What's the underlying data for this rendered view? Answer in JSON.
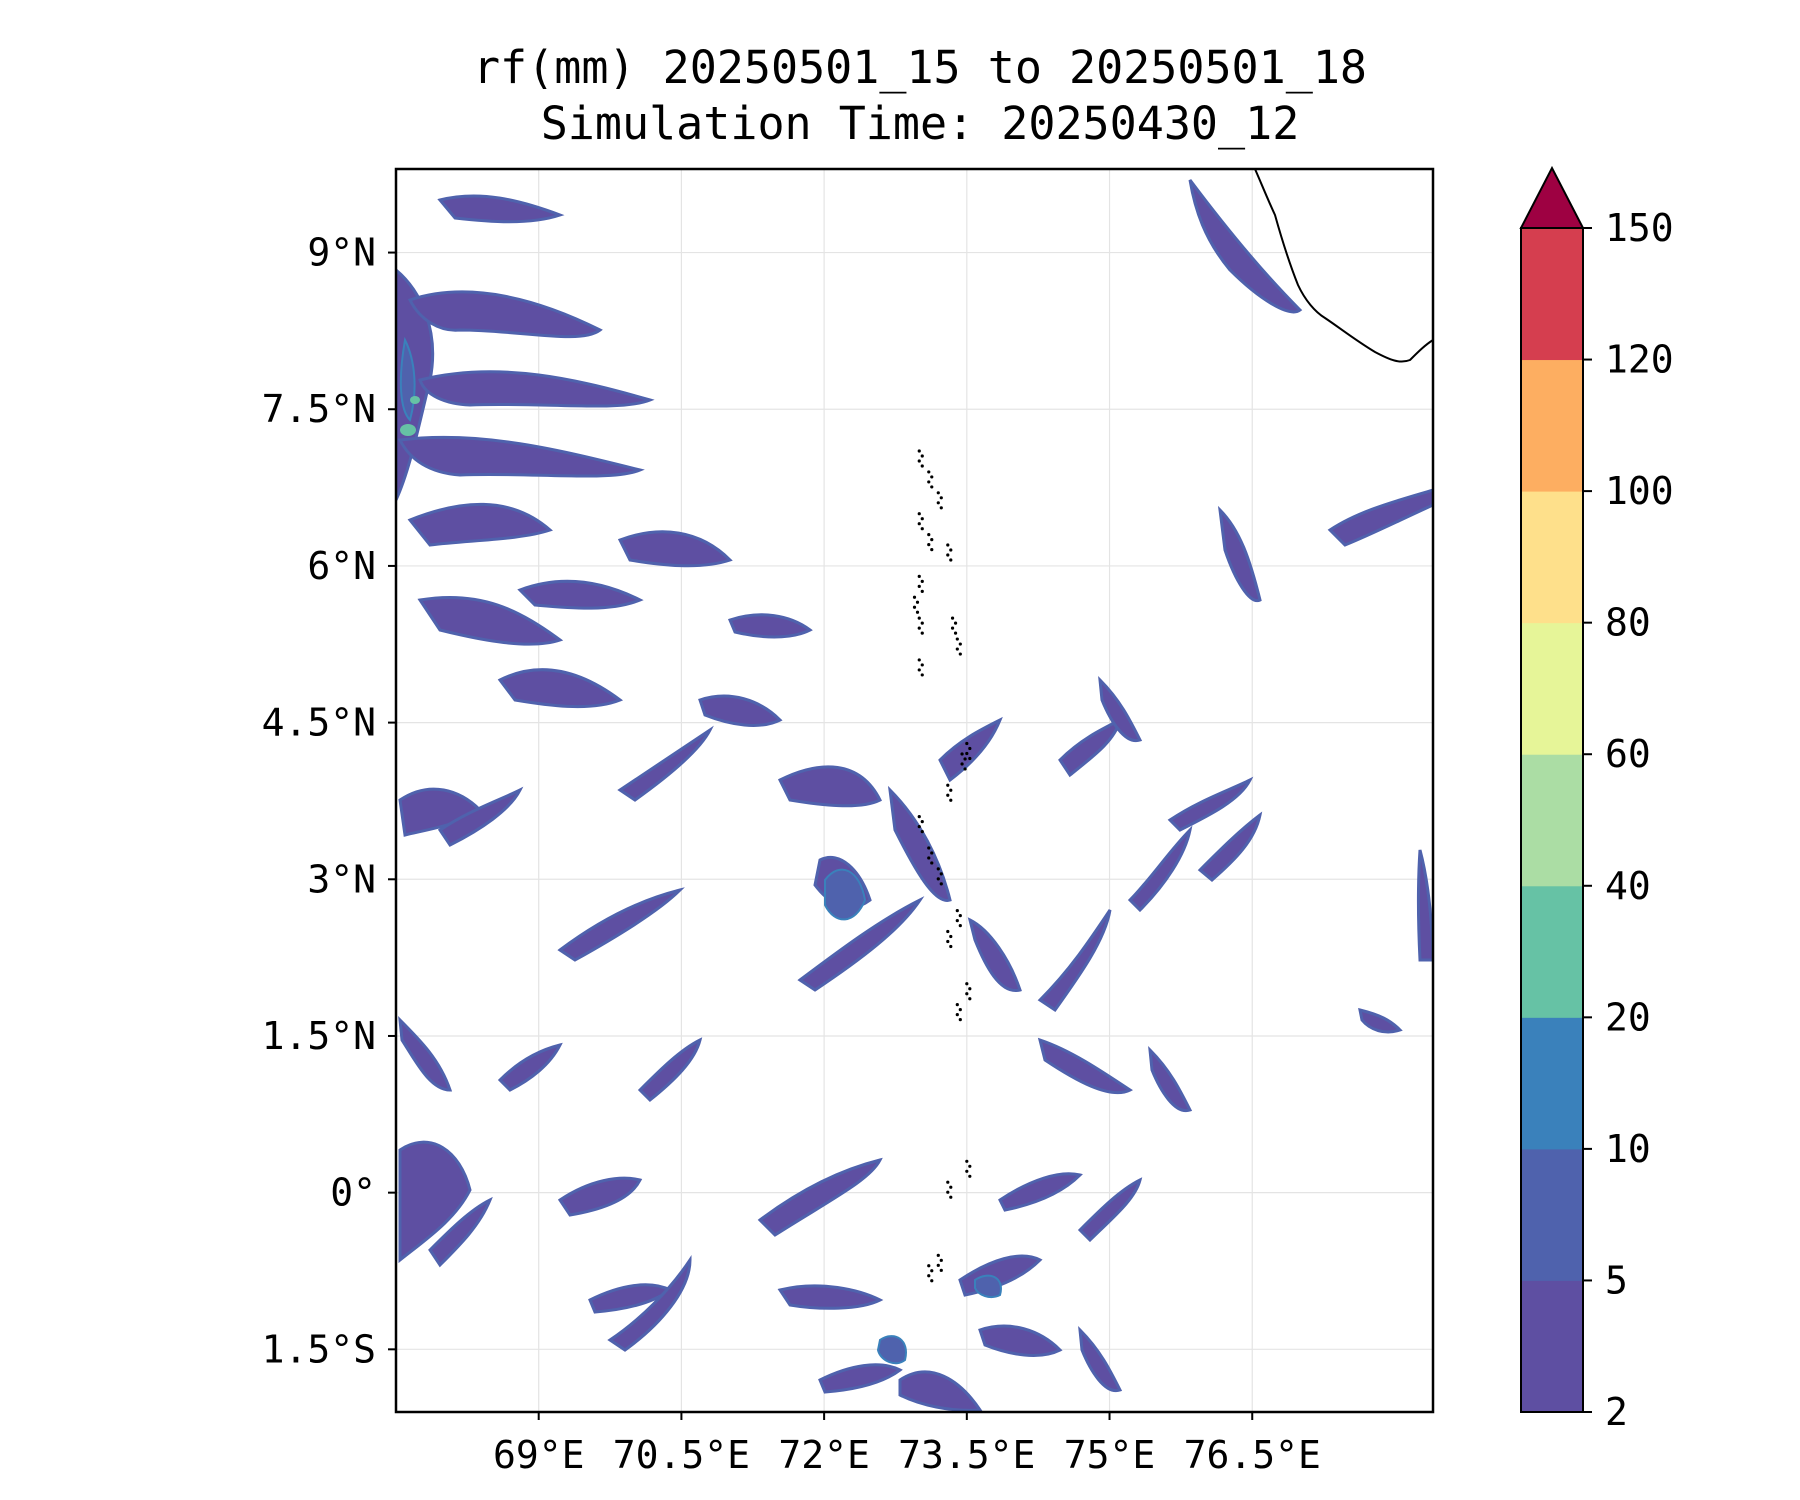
{
  "title": {
    "line1": "rf(mm) 20250501_15 to 20250501_18",
    "line2": "Simulation Time: 20250430_12"
  },
  "map": {
    "lon_range": [
      67.5,
      78.4
    ],
    "lat_range": [
      -2.1,
      9.8
    ],
    "lon_ticks": [
      69,
      70.5,
      72,
      73.5,
      75,
      76.5
    ],
    "lon_tick_labels": [
      "69°E",
      "70.5°E",
      "72°E",
      "73.5°E",
      "75°E",
      "76.5°E"
    ],
    "lat_ticks": [
      9,
      7.5,
      6,
      4.5,
      3,
      1.5,
      0,
      -1.5
    ],
    "lat_tick_labels": [
      "9°N",
      "7.5°N",
      "6°N",
      "4.5°N",
      "3°N",
      "1.5°N",
      "0°",
      "1.5°S"
    ],
    "grid": true
  },
  "colorbar": {
    "levels": [
      2,
      5,
      10,
      20,
      40,
      60,
      80,
      100,
      120,
      150
    ],
    "labels": [
      "2",
      "5",
      "10",
      "20",
      "40",
      "60",
      "80",
      "100",
      "120",
      "150"
    ],
    "colors": [
      "#5e4fa2",
      "#4f62ad",
      "#3a81bb",
      "#66c2a5",
      "#abdda4",
      "#e6f598",
      "#fee08b",
      "#fdae61",
      "#d53e4f",
      "#9e0142"
    ],
    "extend": "max"
  }
}
